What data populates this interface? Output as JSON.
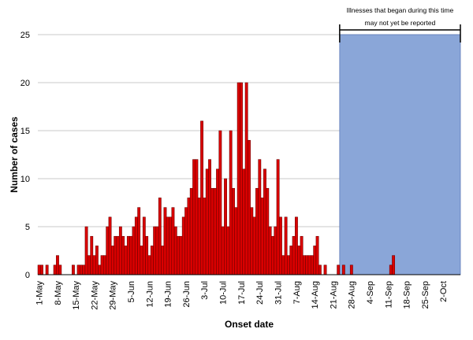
{
  "chart_data": {
    "type": "bar",
    "xlabel": "Onset date",
    "ylabel": "Number of cases",
    "ylim": [
      0,
      25
    ],
    "yticks": [
      0,
      5,
      10,
      15,
      20,
      25
    ],
    "grid": true,
    "x_start": "2019-05-01",
    "x_end": "2019-10-08",
    "tick_labels": [
      "1-May",
      "8-May",
      "15-May",
      "22-May",
      "29-May",
      "5-Jun",
      "12-Jun",
      "19-Jun",
      "26-Jun",
      "3-Jul",
      "10-Jul",
      "17-Jul",
      "24-Jul",
      "31-Jul",
      "7-Aug",
      "14-Aug",
      "21-Aug",
      "28-Aug",
      "4-Sep",
      "11-Sep",
      "18-Sep",
      "25-Sep",
      "2-Oct"
    ],
    "values": [
      1,
      1,
      0,
      1,
      0,
      0,
      1,
      2,
      1,
      0,
      0,
      0,
      0,
      1,
      0,
      1,
      1,
      1,
      5,
      2,
      4,
      2,
      3,
      1,
      2,
      2,
      5,
      6,
      3,
      4,
      4,
      5,
      4,
      3,
      4,
      4,
      5,
      6,
      7,
      3,
      6,
      4,
      2,
      3,
      5,
      5,
      8,
      3,
      7,
      6,
      6,
      7,
      5,
      4,
      4,
      6,
      7,
      8,
      9,
      12,
      12,
      8,
      16,
      8,
      11,
      12,
      9,
      9,
      11,
      15,
      5,
      10,
      5,
      15,
      9,
      7,
      20,
      20,
      11,
      20,
      14,
      7,
      6,
      9,
      12,
      8,
      11,
      9,
      5,
      4,
      5,
      12,
      6,
      2,
      6,
      2,
      3,
      4,
      6,
      3,
      4,
      2,
      2,
      2,
      2,
      3,
      4,
      1,
      0,
      1,
      0,
      0,
      0,
      0,
      1,
      0,
      1,
      0,
      0,
      1,
      0,
      0,
      0,
      0,
      0,
      0,
      0,
      0,
      0,
      0,
      0,
      0,
      0,
      0,
      1,
      2,
      0,
      0,
      0,
      0,
      0,
      0,
      0,
      0,
      0,
      0,
      0,
      0,
      0,
      0,
      0,
      0,
      0,
      0,
      0,
      0,
      0,
      0,
      0,
      0,
      0,
      0,
      0
    ],
    "colors": {
      "bar": "#d90000",
      "bar_outline": "#600000",
      "shaded_region": "#8aa6d8",
      "shaded_outline": "#5b79b8",
      "grid": "#c8c8c8"
    },
    "shaded_region": {
      "start": "2019-08-24",
      "end": "2019-10-08",
      "annotation_line1": "Illnesses that began during this time",
      "annotation_line2": "may not yet be reported"
    }
  }
}
